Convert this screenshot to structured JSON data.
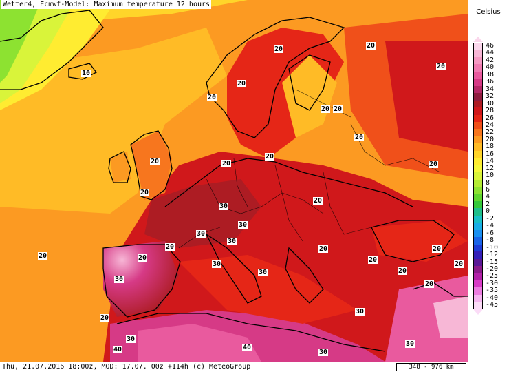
{
  "title": "Wetter4, Ecmwf-Model: Maximum temperature 12 hours",
  "footer": {
    "left": "Thu, 21.07.2016 18:00z, MOD: 17.07. 00z +114h (c) MeteoGroup",
    "scale": "348 - 976 km"
  },
  "legend": {
    "unit": "Celsius",
    "items": [
      {
        "label": "46",
        "color": "#fbd7ec"
      },
      {
        "label": "44",
        "color": "#f7b7d6"
      },
      {
        "label": "42",
        "color": "#f59ac3"
      },
      {
        "label": "40",
        "color": "#f07cb2"
      },
      {
        "label": "38",
        "color": "#e95a9e"
      },
      {
        "label": "36",
        "color": "#d63a86"
      },
      {
        "label": "34",
        "color": "#b52967"
      },
      {
        "label": "32",
        "color": "#8f1d3f"
      },
      {
        "label": "30",
        "color": "#ad1c23"
      },
      {
        "label": "28",
        "color": "#d0181b"
      },
      {
        "label": "26",
        "color": "#e52617"
      },
      {
        "label": "24",
        "color": "#f0501a"
      },
      {
        "label": "22",
        "color": "#f7761e"
      },
      {
        "label": "20",
        "color": "#fc9a22"
      },
      {
        "label": "18",
        "color": "#ffbb26"
      },
      {
        "label": "16",
        "color": "#ffd52a"
      },
      {
        "label": "14",
        "color": "#ffec31"
      },
      {
        "label": "12",
        "color": "#f6f73a"
      },
      {
        "label": "10",
        "color": "#d9f43a"
      },
      {
        "label": "8",
        "color": "#b4ec34"
      },
      {
        "label": "6",
        "color": "#8de231"
      },
      {
        "label": "4",
        "color": "#5fd62f"
      },
      {
        "label": "2",
        "color": "#35c83a"
      },
      {
        "label": "0",
        "color": "#1fbf8a"
      },
      {
        "label": "-2",
        "color": "#19c0c6"
      },
      {
        "label": "-4",
        "color": "#19aee6"
      },
      {
        "label": "-6",
        "color": "#1a8ff0"
      },
      {
        "label": "-8",
        "color": "#1a64e8"
      },
      {
        "label": "-10",
        "color": "#1e3cd6"
      },
      {
        "label": "-12",
        "color": "#3520b8"
      },
      {
        "label": "-15",
        "color": "#5a1896"
      },
      {
        "label": "-20",
        "color": "#8a1a8a"
      },
      {
        "label": "-25",
        "color": "#b221a8"
      },
      {
        "label": "-30",
        "color": "#d83cc6"
      },
      {
        "label": "-35",
        "color": "#ec7ce0"
      },
      {
        "label": "-40",
        "color": "#f5b4ef"
      },
      {
        "label": "-45",
        "color": "#fbdcf7"
      }
    ]
  },
  "contour_labels": [
    {
      "text": "20"
    },
    {
      "text": "20"
    },
    {
      "text": "10"
    },
    {
      "text": "20"
    },
    {
      "text": "20"
    },
    {
      "text": "20"
    },
    {
      "text": "20"
    },
    {
      "text": "20"
    },
    {
      "text": "20"
    },
    {
      "text": "20"
    },
    {
      "text": "20"
    },
    {
      "text": "20"
    },
    {
      "text": "20"
    },
    {
      "text": "30"
    },
    {
      "text": "20"
    },
    {
      "text": "30"
    },
    {
      "text": "30"
    },
    {
      "text": "20"
    },
    {
      "text": "20"
    },
    {
      "text": "30"
    },
    {
      "text": "20"
    },
    {
      "text": "30"
    },
    {
      "text": "30"
    },
    {
      "text": "20"
    },
    {
      "text": "20"
    },
    {
      "text": "20"
    },
    {
      "text": "30"
    },
    {
      "text": "20"
    },
    {
      "text": "30"
    },
    {
      "text": "40"
    },
    {
      "text": "40"
    },
    {
      "text": "30"
    },
    {
      "text": "30"
    },
    {
      "text": "30"
    },
    {
      "text": "20"
    },
    {
      "text": "20"
    },
    {
      "text": "20"
    },
    {
      "text": "20"
    }
  ]
}
